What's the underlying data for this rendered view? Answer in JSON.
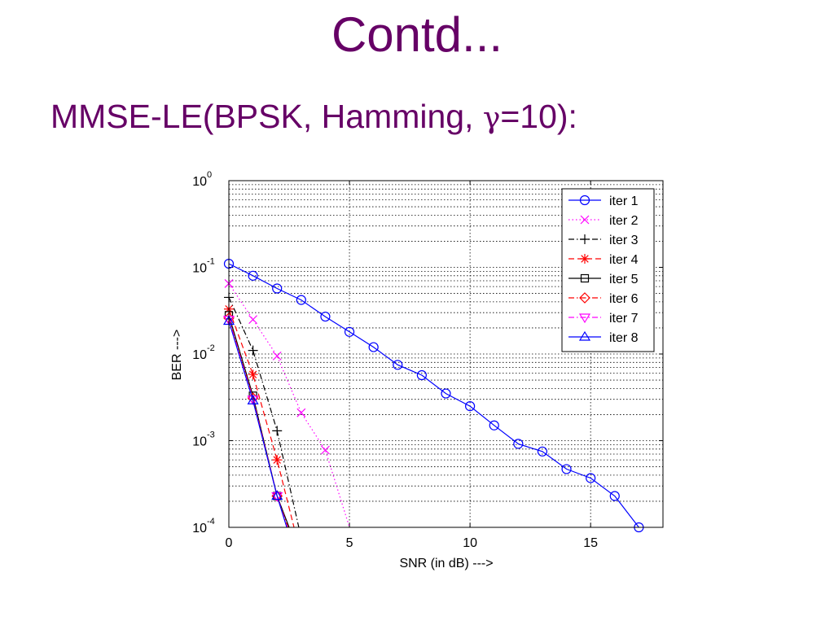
{
  "slide": {
    "title": "Contd...",
    "subtitle_prefix": "MMSE-LE(BPSK, Hamming, ",
    "subtitle_symbol": "γ",
    "subtitle_suffix": "=10):"
  },
  "chart_data": {
    "type": "line",
    "xlabel": "SNR (in dB)   --->",
    "ylabel": "BER   --->",
    "xlim": [
      0,
      18
    ],
    "ylim": [
      0.0001,
      1
    ],
    "yscale": "log",
    "grid": true,
    "legend_position": "top-right",
    "x_ticks": [
      0,
      5,
      10,
      15
    ],
    "y_ticks": [
      {
        "base": "10",
        "exp": "0",
        "value": 1
      },
      {
        "base": "10",
        "exp": "-1",
        "value": 0.1
      },
      {
        "base": "10",
        "exp": "-2",
        "value": 0.01
      },
      {
        "base": "10",
        "exp": "-3",
        "value": 0.001
      },
      {
        "base": "10",
        "exp": "-4",
        "value": 0.0001
      }
    ],
    "series": [
      {
        "name": "iter 1",
        "color": "#0000ff",
        "dash": "solid",
        "marker": "circle",
        "x": [
          0,
          1,
          2,
          3,
          4,
          5,
          6,
          7,
          8,
          9,
          10,
          11,
          12,
          13,
          14,
          15,
          16,
          17
        ],
        "y": [
          0.11,
          0.08,
          0.057,
          0.042,
          0.027,
          0.018,
          0.012,
          0.0075,
          0.0057,
          0.0035,
          0.0025,
          0.0015,
          0.00092,
          0.00075,
          0.00047,
          0.00037,
          0.00023,
          0.0001
        ]
      },
      {
        "name": "iter 2",
        "color": "#ff00ff",
        "dash": "dotted",
        "marker": "x",
        "x": [
          0,
          1,
          2,
          3,
          4,
          5
        ],
        "y": [
          0.065,
          0.025,
          0.0095,
          0.0021,
          0.00078,
          0.0001
        ]
      },
      {
        "name": "iter 3",
        "color": "#000000",
        "dash": "dashdot",
        "marker": "plus",
        "x": [
          0,
          1,
          2,
          2.9
        ],
        "y": [
          0.045,
          0.011,
          0.0013,
          0.0001
        ]
      },
      {
        "name": "iter 4",
        "color": "#ff0000",
        "dash": "dashed",
        "marker": "star",
        "x": [
          0,
          1,
          2,
          2.7
        ],
        "y": [
          0.033,
          0.0058,
          0.0006,
          0.0001
        ]
      },
      {
        "name": "iter 5",
        "color": "#000000",
        "dash": "solid",
        "marker": "square",
        "x": [
          0,
          1,
          2,
          2.5
        ],
        "y": [
          0.028,
          0.0033,
          0.00023,
          0.0001
        ]
      },
      {
        "name": "iter 6",
        "color": "#ff0000",
        "dash": "dashdot",
        "marker": "diamond",
        "x": [
          0,
          1,
          2,
          2.45
        ],
        "y": [
          0.026,
          0.0031,
          0.00023,
          0.0001
        ]
      },
      {
        "name": "iter 7",
        "color": "#ff00ff",
        "dash": "dashdot",
        "marker": "triangle-down",
        "x": [
          0,
          1,
          2,
          2.42
        ],
        "y": [
          0.025,
          0.003,
          0.00023,
          0.0001
        ]
      },
      {
        "name": "iter 8",
        "color": "#0000ff",
        "dash": "solid",
        "marker": "triangle-up",
        "x": [
          0,
          1,
          2,
          2.4
        ],
        "y": [
          0.024,
          0.0029,
          0.00023,
          0.0001
        ]
      }
    ]
  }
}
